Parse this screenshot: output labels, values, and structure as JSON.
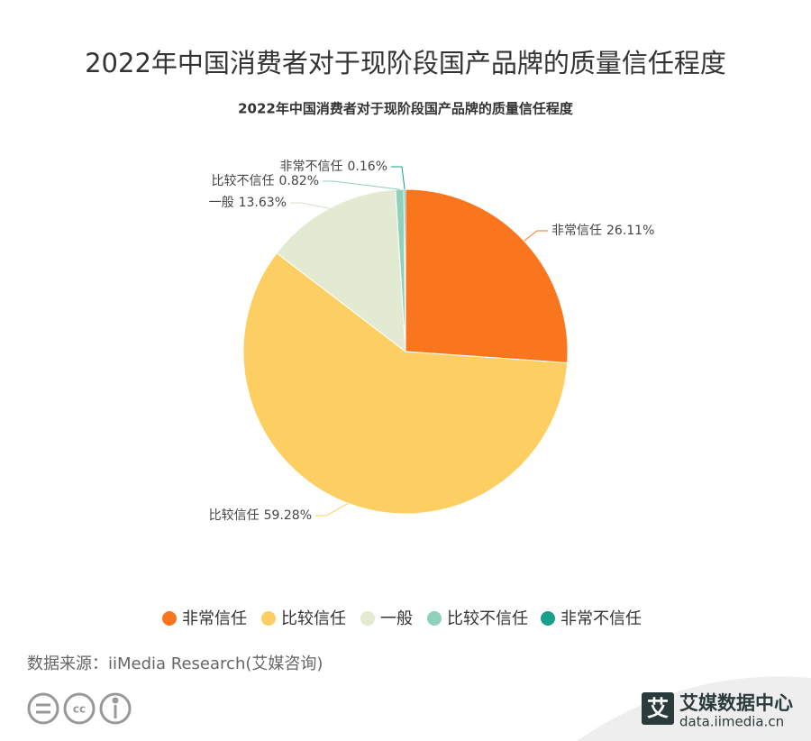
{
  "header": {
    "title": "2022年中国消费者对于现阶段国产品牌的质量信任程度"
  },
  "chart_data": {
    "type": "pie",
    "title": "2022年中国消费者对于现阶段国产品牌的质量信任程度",
    "categories": [
      "非常信任",
      "比较信任",
      "一般",
      "比较不信任",
      "非常不信任"
    ],
    "values": [
      26.11,
      59.28,
      13.63,
      0.82,
      0.16
    ],
    "value_labels": [
      "26.11%",
      "59.28%",
      "13.63%",
      "0.82%",
      "0.16%"
    ],
    "colors": [
      "#fa761e",
      "#fdcf63",
      "#e2ead2",
      "#8fd1bb",
      "#17a08a"
    ],
    "legend": "bottom"
  },
  "footer": {
    "source": "数据来源：iiMedia Research(艾媒咨询)",
    "logo_mark": "艾",
    "logo_name": "艾媒数据中心",
    "logo_url": "data.iimedia.cn"
  }
}
